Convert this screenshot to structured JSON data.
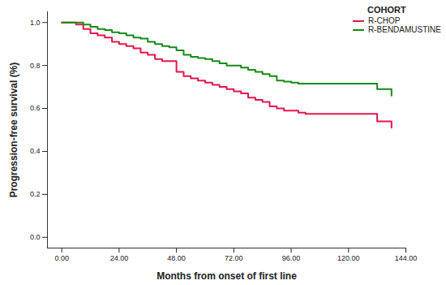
{
  "chart_data": {
    "type": "line",
    "x_label": "Months from onset of first line",
    "y_label": "Progression-free survival (%)",
    "legend_title": "COHORT",
    "legend": "top-right",
    "grid": false,
    "line_style": "step",
    "x": [
      0,
      6,
      9,
      12,
      15,
      18,
      21,
      24,
      27,
      30,
      33,
      36,
      39,
      42,
      45,
      48,
      51,
      54,
      57,
      60,
      63,
      66,
      69,
      72,
      75,
      78,
      81,
      84,
      87,
      90,
      93,
      96,
      99,
      102,
      108,
      114,
      120,
      126,
      129,
      132,
      135,
      138
    ],
    "series": [
      {
        "name": "R-CHOP",
        "color": "#e3174b",
        "values": [
          1.0,
          0.99,
          0.97,
          0.95,
          0.94,
          0.93,
          0.91,
          0.9,
          0.89,
          0.88,
          0.86,
          0.85,
          0.83,
          0.82,
          0.82,
          0.77,
          0.75,
          0.74,
          0.73,
          0.72,
          0.71,
          0.7,
          0.69,
          0.68,
          0.67,
          0.65,
          0.64,
          0.63,
          0.61,
          0.6,
          0.59,
          0.59,
          0.58,
          0.575,
          0.575,
          0.575,
          0.575,
          0.575,
          0.575,
          0.54,
          0.54,
          0.51
        ]
      },
      {
        "name": "R-BENDAMUSTINE",
        "color": "#178a17",
        "values": [
          1.0,
          1.0,
          0.99,
          0.98,
          0.97,
          0.965,
          0.955,
          0.95,
          0.94,
          0.93,
          0.925,
          0.91,
          0.9,
          0.89,
          0.885,
          0.87,
          0.85,
          0.84,
          0.835,
          0.83,
          0.82,
          0.81,
          0.8,
          0.8,
          0.79,
          0.78,
          0.77,
          0.76,
          0.75,
          0.73,
          0.725,
          0.72,
          0.715,
          0.715,
          0.715,
          0.715,
          0.715,
          0.715,
          0.715,
          0.69,
          0.69,
          0.66
        ]
      }
    ],
    "xlim": [
      -6,
      144
    ],
    "ylim": [
      -0.05,
      1.05
    ],
    "xticks": [
      {
        "value": 0,
        "label": "0.00"
      },
      {
        "value": 24,
        "label": "24.00"
      },
      {
        "value": 48,
        "label": "48.00"
      },
      {
        "value": 72,
        "label": "72.00"
      },
      {
        "value": 96,
        "label": "96.00"
      },
      {
        "value": 120,
        "label": "120.00"
      },
      {
        "value": 144,
        "label": "144.00"
      }
    ],
    "yticks": [
      {
        "value": 0,
        "label": "0.0"
      },
      0.2,
      0.4,
      0.6,
      0.8,
      {
        "value": 1,
        "label": "1.0"
      }
    ]
  }
}
